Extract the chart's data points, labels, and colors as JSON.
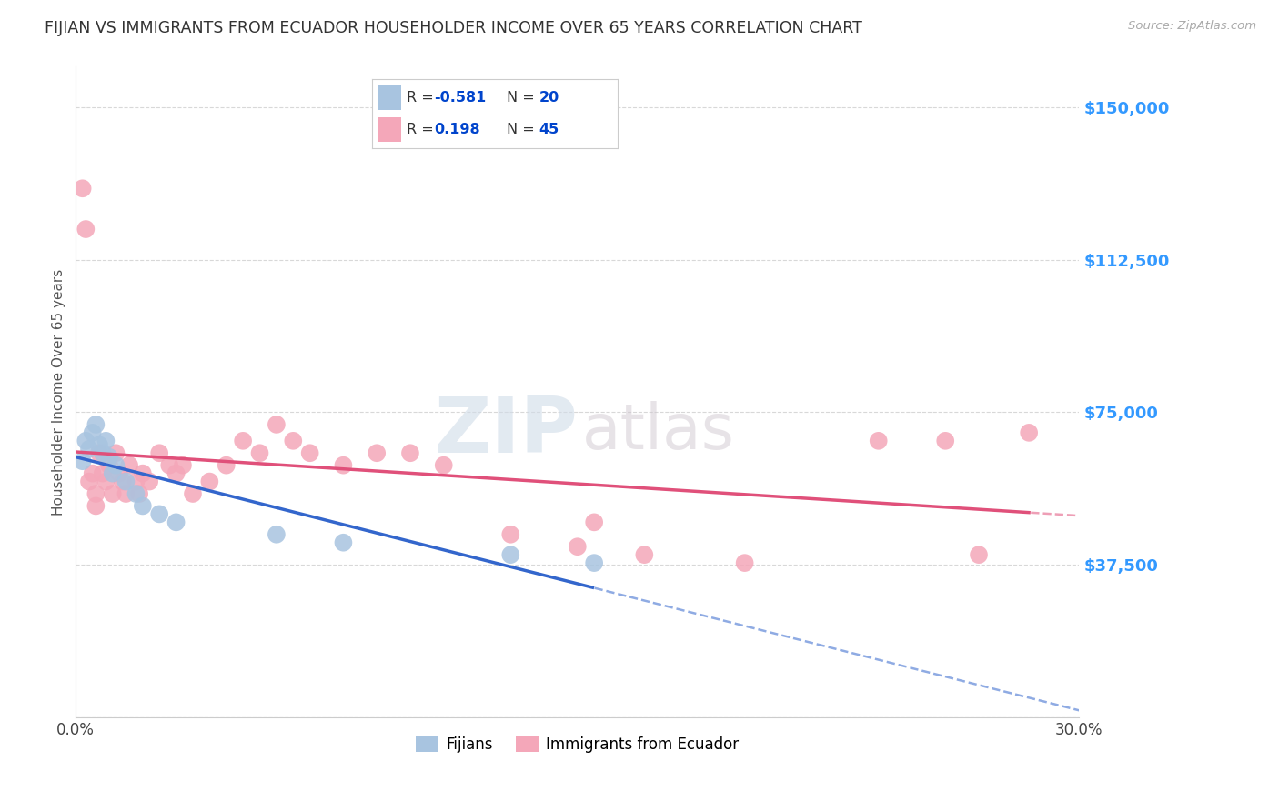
{
  "title": "FIJIAN VS IMMIGRANTS FROM ECUADOR HOUSEHOLDER INCOME OVER 65 YEARS CORRELATION CHART",
  "source": "Source: ZipAtlas.com",
  "ylabel": "Householder Income Over 65 years",
  "xlim": [
    0.0,
    0.3
  ],
  "ylim": [
    0,
    160000
  ],
  "yticks": [
    0,
    37500,
    75000,
    112500,
    150000
  ],
  "ytick_labels": [
    "",
    "$37,500",
    "$75,000",
    "$112,500",
    "$150,000"
  ],
  "xticks": [
    0.0,
    0.05,
    0.1,
    0.15,
    0.2,
    0.25,
    0.3
  ],
  "xtick_labels": [
    "0.0%",
    "",
    "",
    "",
    "",
    "",
    "30.0%"
  ],
  "watermark_zip": "ZIP",
  "watermark_atlas": "atlas",
  "fijian_color": "#a8c4e0",
  "ecuador_color": "#f4a7b9",
  "fijian_line_color": "#3366cc",
  "ecuador_line_color": "#e0507a",
  "fijian_R": -0.581,
  "fijian_N": 20,
  "ecuador_R": 0.198,
  "ecuador_N": 45,
  "fijian_x": [
    0.002,
    0.003,
    0.004,
    0.005,
    0.006,
    0.007,
    0.008,
    0.009,
    0.01,
    0.011,
    0.012,
    0.015,
    0.018,
    0.02,
    0.025,
    0.03,
    0.06,
    0.08,
    0.13,
    0.155
  ],
  "fijian_y": [
    63000,
    68000,
    66000,
    70000,
    72000,
    67000,
    65000,
    68000,
    64000,
    60000,
    62000,
    58000,
    55000,
    52000,
    50000,
    48000,
    45000,
    43000,
    40000,
    38000
  ],
  "ecuador_x": [
    0.002,
    0.003,
    0.004,
    0.005,
    0.006,
    0.006,
    0.007,
    0.008,
    0.009,
    0.01,
    0.011,
    0.012,
    0.013,
    0.014,
    0.015,
    0.016,
    0.018,
    0.019,
    0.02,
    0.022,
    0.025,
    0.028,
    0.03,
    0.032,
    0.035,
    0.04,
    0.045,
    0.05,
    0.055,
    0.06,
    0.065,
    0.07,
    0.08,
    0.09,
    0.1,
    0.11,
    0.13,
    0.15,
    0.155,
    0.17,
    0.2,
    0.24,
    0.26,
    0.27,
    0.285
  ],
  "ecuador_y": [
    130000,
    120000,
    58000,
    60000,
    55000,
    52000,
    65000,
    60000,
    58000,
    62000,
    55000,
    65000,
    60000,
    58000,
    55000,
    62000,
    58000,
    55000,
    60000,
    58000,
    65000,
    62000,
    60000,
    62000,
    55000,
    58000,
    62000,
    68000,
    65000,
    72000,
    68000,
    65000,
    62000,
    65000,
    65000,
    62000,
    45000,
    42000,
    48000,
    40000,
    38000,
    68000,
    68000,
    40000,
    70000
  ],
  "background_color": "#ffffff",
  "grid_color": "#d8d8d8",
  "title_color": "#333333",
  "axis_label_color": "#555555",
  "ytick_color": "#3399ff",
  "legend_R_color": "#0044cc",
  "legend_N_color": "#0044cc"
}
